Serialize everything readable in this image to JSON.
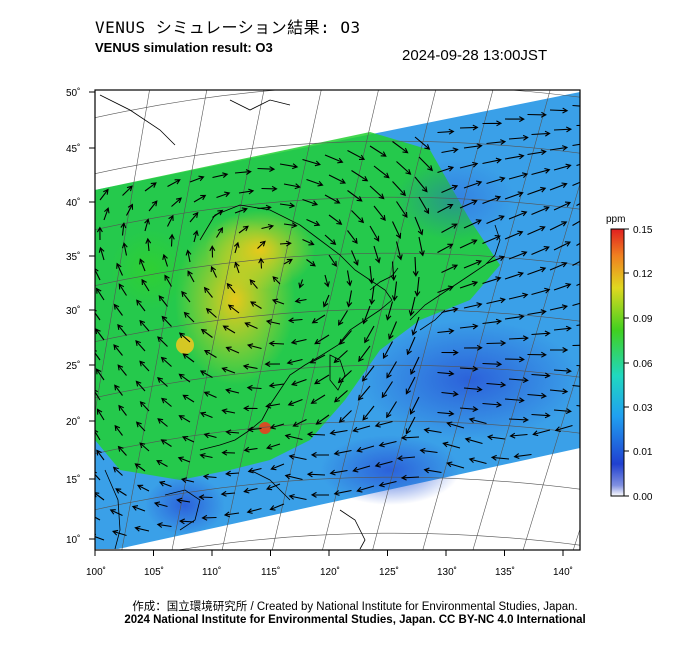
{
  "header": {
    "title_ja": "VENUS シミュレーション結果: O3",
    "title_en": "VENUS simulation result: O3",
    "datetime": "2024-09-28 13:00JST"
  },
  "map": {
    "lon_range": [
      100,
      140
    ],
    "lat_range": [
      10,
      50
    ],
    "x_tick_labels": [
      "100˚",
      "105˚",
      "110˚",
      "115˚",
      "120˚",
      "125˚",
      "130˚",
      "135˚",
      "140˚"
    ],
    "y_tick_labels": [
      "50˚",
      "45˚",
      "40˚",
      "35˚",
      "30˚",
      "25˚",
      "20˚",
      "15˚",
      "10˚"
    ],
    "ocean_color": "#3aa0e8",
    "land_color": "#22d030",
    "high_color": "#e8d820",
    "low_color": "#2050d0"
  },
  "colorbar": {
    "unit": "ppm",
    "tick_labels": [
      "0.15",
      "0.12",
      "0.09",
      "0.06",
      "0.03",
      "0.01",
      "0.00"
    ],
    "stops": [
      "#ffffff",
      "#3040d0",
      "#20a0f0",
      "#20d0a0",
      "#40d020",
      "#e0d820",
      "#f08020",
      "#e02020"
    ]
  },
  "credits": {
    "line1": "作成：国立環境研究所 / Created by National Institute for Environmental Studies, Japan.",
    "line2": "2024 National Institute for Environmental Studies, Japan. CC BY-NC 4.0 International"
  }
}
